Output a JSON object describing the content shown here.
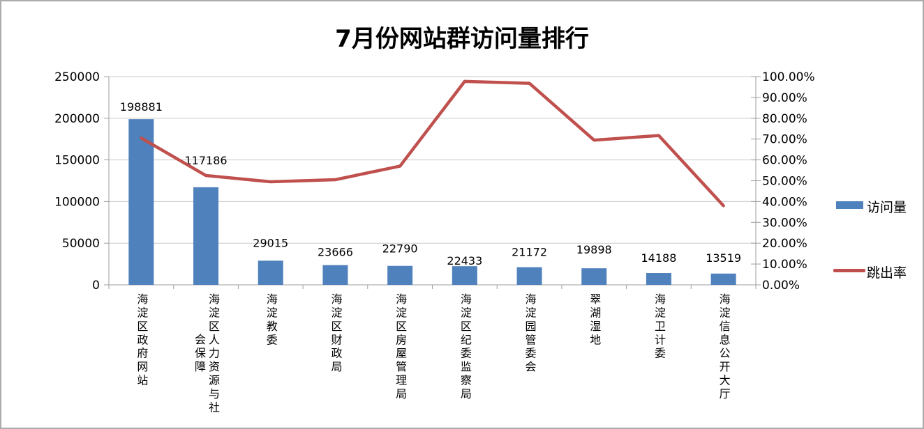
{
  "title": "7月份网站群访问量排行",
  "legend": {
    "items": [
      {
        "label": "访问量",
        "type": "bar",
        "color": "#4F81BD"
      },
      {
        "label": "跳出率",
        "type": "line",
        "color": "#C0504D"
      }
    ]
  },
  "chart_data": {
    "type": "bar+line",
    "title": "7月份网站群访问量排行",
    "categories": [
      "海淀区政府网站",
      "海淀区人力资源与社会保障",
      "海淀教委",
      "海淀区财政局",
      "海淀区房屋管理局",
      "海淀区纪委监察局",
      "海淀园管委会",
      "翠湖湿地",
      "海淀卫计委",
      "海淀信息公开大厅"
    ],
    "series": [
      {
        "name": "访问量",
        "type": "bar",
        "axis": "left",
        "color": "#4F81BD",
        "values": [
          198881,
          117186,
          29015,
          23666,
          22790,
          22433,
          21172,
          19898,
          14188,
          13519
        ],
        "data_labels": [
          "198881",
          "117186",
          "29015",
          "23666",
          "22790",
          "22433",
          "21172",
          "19898",
          "14188",
          "13519"
        ]
      },
      {
        "name": "跳出率",
        "type": "line",
        "axis": "right",
        "color": "#C0504D",
        "values_pct": [
          70.5,
          52.5,
          49.5,
          50.5,
          57.0,
          97.7,
          96.8,
          69.5,
          71.7,
          38.0
        ]
      }
    ],
    "left_axis": {
      "min": 0,
      "max": 250000,
      "step": 50000,
      "tick_labels": [
        "0",
        "50000",
        "100000",
        "150000",
        "200000",
        "250000"
      ]
    },
    "right_axis": {
      "min": 0,
      "max": 100,
      "step": 10,
      "tick_labels": [
        "0.00%",
        "10.00%",
        "20.00%",
        "30.00%",
        "40.00%",
        "50.00%",
        "60.00%",
        "70.00%",
        "80.00%",
        "90.00%",
        "100.00%"
      ]
    },
    "grid": true,
    "legend_position": "right"
  }
}
